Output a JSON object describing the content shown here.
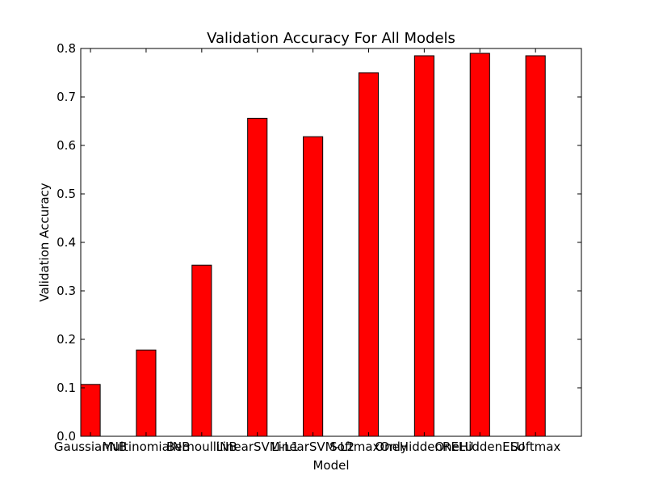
{
  "chart_data": {
    "type": "bar",
    "title": "Validation Accuracy For All Models",
    "xlabel": "Model",
    "ylabel": "Validation Accuracy",
    "categories": [
      "GaussianNB",
      "MultinomialNB",
      "BernoulliNB",
      "LinearSVM-L1",
      "LinearSVM-L2",
      "SoftmaxOnly",
      "OneHiddenRELU",
      "OneHiddenELU",
      "Softmax"
    ],
    "values": [
      0.107,
      0.178,
      0.353,
      0.656,
      0.618,
      0.75,
      0.785,
      0.79,
      0.785
    ],
    "ylim": [
      0.0,
      0.8
    ],
    "yticks": [
      "0.0",
      "0.1",
      "0.2",
      "0.3",
      "0.4",
      "0.5",
      "0.6",
      "0.7",
      "0.8"
    ],
    "bar_color": "#ff0000",
    "grid": false
  }
}
